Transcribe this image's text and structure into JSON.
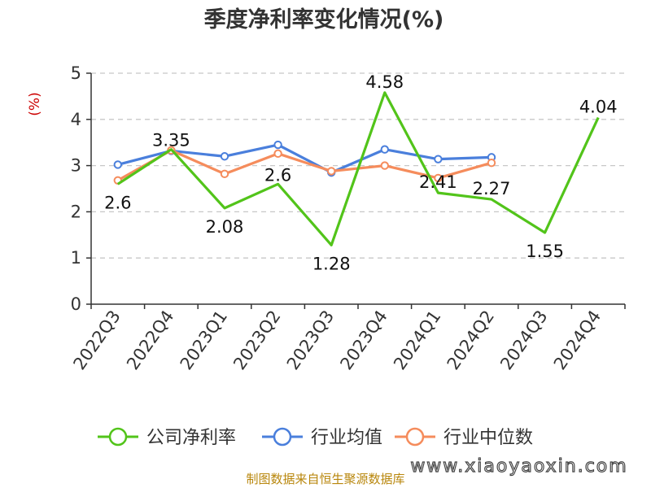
{
  "chart_data": {
    "type": "line",
    "title": "季度净利率变化情况(%)",
    "ylabel": "(%)",
    "xlabel": "",
    "ylim": [
      0,
      5
    ],
    "yticks": [
      0,
      1,
      2,
      3,
      4,
      5
    ],
    "grid": true,
    "legend_position": "bottom",
    "categories": [
      "2022Q3",
      "2022Q4",
      "2023Q1",
      "2023Q2",
      "2023Q3",
      "2023Q4",
      "2024Q1",
      "2024Q2",
      "2024Q3",
      "2024Q4"
    ],
    "series": [
      {
        "name": "公司净利率",
        "color": "#52c41a",
        "values": [
          2.6,
          3.35,
          2.08,
          2.6,
          1.28,
          4.58,
          2.41,
          2.27,
          1.55,
          4.04
        ],
        "labels": true
      },
      {
        "name": "行业均值",
        "color": "#4a7fdc",
        "values": [
          3.02,
          3.32,
          3.2,
          3.45,
          2.85,
          3.35,
          3.14,
          3.18,
          null,
          null
        ],
        "labels": false
      },
      {
        "name": "行业中位数",
        "color": "#f58c5c",
        "values": [
          2.68,
          3.33,
          2.82,
          3.26,
          2.88,
          3.0,
          2.73,
          3.06,
          null,
          null
        ],
        "labels": false
      }
    ]
  },
  "footer": {
    "source": "制图数据来自恒生聚源数据库",
    "watermark": "www.xiaoyaoxin.com"
  }
}
